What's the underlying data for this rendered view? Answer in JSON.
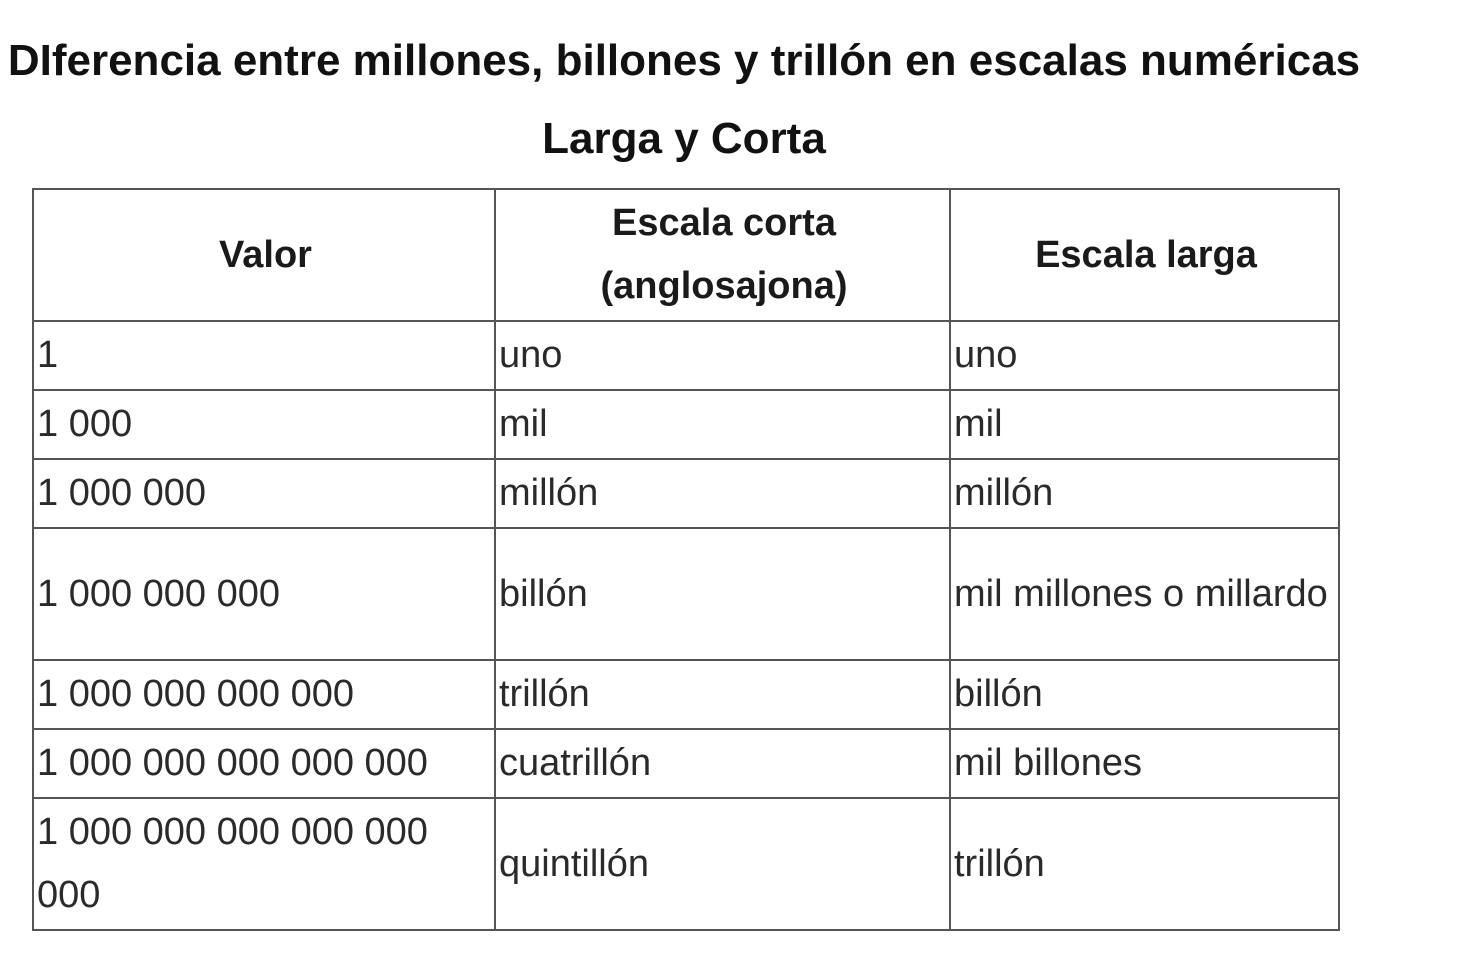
{
  "title": "DIferencia entre millones, billones y trillón en escalas numéricas Larga y Corta",
  "table": {
    "headers": [
      "Valor",
      "Escala corta (anglosajona)",
      "Escala larga"
    ],
    "rows": [
      [
        "1",
        "uno",
        "uno"
      ],
      [
        "1 000",
        "mil",
        "mil"
      ],
      [
        "1 000 000",
        "millón",
        "millón"
      ],
      [
        "1 000 000 000",
        "billón",
        "mil millones o millardo"
      ],
      [
        "1 000 000 000 000",
        "trillón",
        "billón"
      ],
      [
        "1 000 000 000 000 000",
        "cuatrillón",
        "mil billones"
      ],
      [
        "1 000 000 000 000 000 000",
        "quintillón",
        "trillón"
      ]
    ]
  }
}
